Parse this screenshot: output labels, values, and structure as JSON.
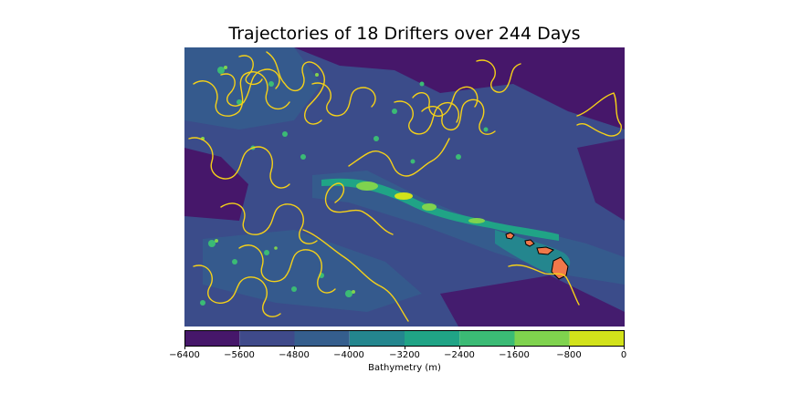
{
  "title": "Trajectories of 18 Drifters over 244 Days",
  "colorbar": {
    "label": "Bathymetry (m)",
    "ticks": [
      "−6400",
      "−5600",
      "−4800",
      "−4000",
      "−3200",
      "−2400",
      "−1600",
      "−800",
      "0"
    ],
    "colors": [
      "#46176a",
      "#3f4a8a",
      "#355e8d",
      "#24868e",
      "#20a486",
      "#3bbb75",
      "#7fd34e",
      "#d2e21b"
    ]
  },
  "colors": {
    "trajectory": "#f5d118",
    "land": "#f0784a",
    "deep": "#3b4c8a",
    "abyss": "#461a6c",
    "shallow": "#2fb47c"
  },
  "chart_data": {
    "type": "map",
    "drifter_count": 18,
    "days": 244,
    "colorbar_range": [
      -6400,
      0
    ],
    "colorbar_levels": [
      -6400,
      -5600,
      -4800,
      -4000,
      -3200,
      -2400,
      -1600,
      -800,
      0
    ]
  }
}
